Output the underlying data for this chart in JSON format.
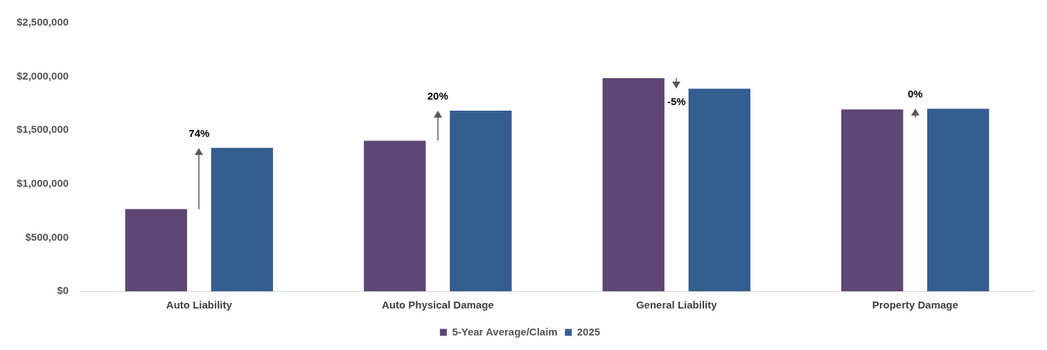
{
  "chart_data": {
    "type": "bar",
    "categories": [
      "Auto Liability",
      "Auto Physical Damage",
      "General Liability",
      "Property Damage"
    ],
    "series": [
      {
        "name": "5-Year Average/Claim",
        "color": "#5e4675",
        "values": [
          765000,
          1402000,
          1984000,
          1693000
        ]
      },
      {
        "name": "2025",
        "color": "#355e90",
        "values": [
          1335000,
          1681000,
          1887000,
          1699000
        ]
      }
    ],
    "ylim": [
      0,
      2500000
    ],
    "yticks": [
      {
        "value": 0,
        "label": "$0"
      },
      {
        "value": 500000,
        "label": "$500,000"
      },
      {
        "value": 1000000,
        "label": "$1,000,000"
      },
      {
        "value": 1500000,
        "label": "$1,500,000"
      },
      {
        "value": 2000000,
        "label": "$2,000,000"
      },
      {
        "value": 2500000,
        "label": "$2,500,000"
      }
    ],
    "grid": false,
    "legend": "bottom",
    "annotations": [
      "74%",
      "20%",
      "-5%",
      "0%"
    ]
  }
}
